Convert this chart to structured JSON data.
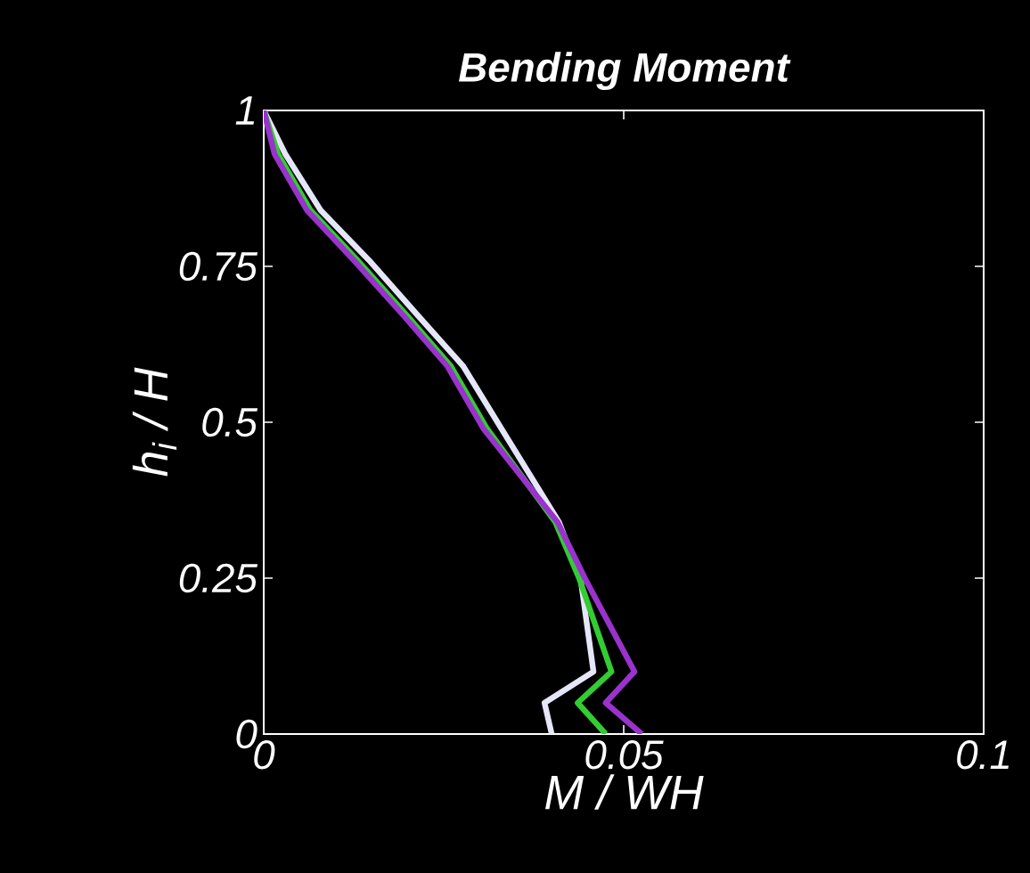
{
  "chart_data": {
    "type": "line",
    "title": "Bending Moment",
    "xlabel": "M / WH",
    "ylabel": "h$_{i}$ / H",
    "xlim": [
      0,
      0.1
    ],
    "xticks": [
      0,
      0.05,
      0.1
    ],
    "ylim": [
      0,
      1
    ],
    "yticks": [
      0,
      0.25,
      0.5,
      0.75,
      1
    ],
    "line_style": "solid",
    "marker": "none",
    "series": [
      {
        "color": "#e6e6fa",
        "x": [
          0.04,
          0.039,
          0.0458,
          0.044,
          0.041,
          0.033,
          0.0277,
          0.0215,
          0.0146,
          0.0079,
          0.003,
          0
        ],
        "values": [
          0,
          0.05,
          0.1,
          0.25,
          0.34,
          0.49,
          0.59,
          0.67,
          0.76,
          0.84,
          0.93,
          1
        ]
      },
      {
        "color": "#33cc33",
        "x": [
          0.0475,
          0.0436,
          0.0483,
          0.0438,
          0.0405,
          0.031,
          0.026,
          0.02,
          0.013,
          0.0065,
          0.002,
          0
        ],
        "values": [
          0,
          0.05,
          0.1,
          0.25,
          0.34,
          0.49,
          0.59,
          0.67,
          0.76,
          0.84,
          0.93,
          1
        ]
      },
      {
        "color": "#9933cc",
        "x": [
          0.0525,
          0.0475,
          0.0515,
          0.0446,
          0.0408,
          0.0305,
          0.0255,
          0.0195,
          0.0125,
          0.006,
          0.0015,
          0
        ],
        "values": [
          0,
          0.05,
          0.1,
          0.25,
          0.34,
          0.49,
          0.59,
          0.67,
          0.76,
          0.84,
          0.93,
          1
        ]
      }
    ]
  }
}
